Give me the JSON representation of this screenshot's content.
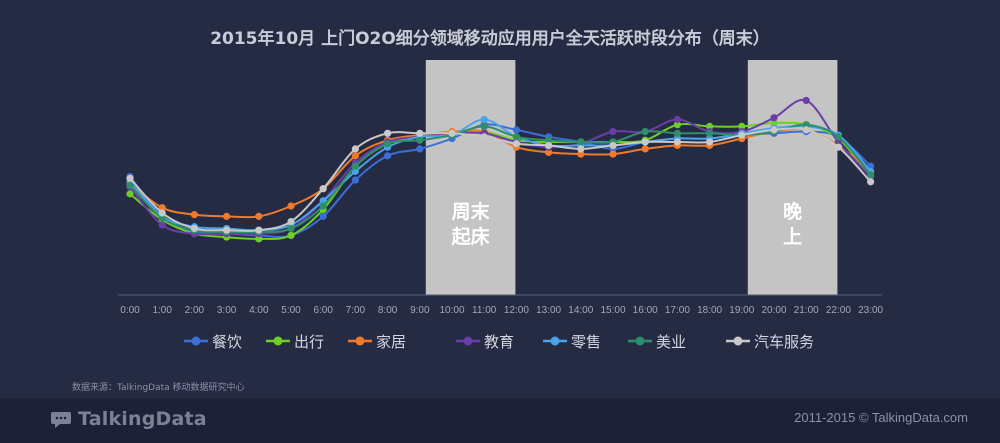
{
  "chart_data": {
    "type": "line",
    "title": "2015年10月  上门O2O细分领域移动应用用户全天活跃时段分布（周末）",
    "categories": [
      "0:00",
      "1:00",
      "2:00",
      "3:00",
      "4:00",
      "5:00",
      "6:00",
      "7:00",
      "8:00",
      "9:00",
      "10:00",
      "11:00",
      "12:00",
      "13:00",
      "14:00",
      "15:00",
      "16:00",
      "17:00",
      "18:00",
      "19:00",
      "20:00",
      "21:00",
      "22:00",
      "23:00"
    ],
    "ylim": [
      0,
      100
    ],
    "grid": false,
    "legend_position": "bottom",
    "series": [
      {
        "name": "餐饮",
        "color": "#3a6fd8",
        "values": [
          54,
          31,
          22,
          21,
          20,
          20,
          31,
          52,
          66,
          70,
          76,
          84,
          81,
          77,
          74,
          70,
          74,
          76,
          76,
          78,
          79,
          80,
          77,
          60
        ]
      },
      {
        "name": "出行",
        "color": "#6fcf24",
        "values": [
          44,
          29,
          21,
          19,
          18,
          20,
          35,
          60,
          73,
          77,
          79,
          80,
          75,
          74,
          74,
          74,
          75,
          84,
          83,
          83,
          85,
          84,
          76,
          54
        ]
      },
      {
        "name": "家居",
        "color": "#f07a2a",
        "values": [
          50,
          36,
          32,
          31,
          31,
          37,
          47,
          66,
          75,
          78,
          80,
          80,
          71,
          68,
          67,
          67,
          70,
          72,
          72,
          76,
          80,
          81,
          72,
          57
        ]
      },
      {
        "name": "教育",
        "color": "#6a3ea8",
        "values": [
          48,
          26,
          21,
          21,
          21,
          24,
          40,
          62,
          74,
          77,
          79,
          79,
          74,
          71,
          73,
          80,
          80,
          87,
          80,
          80,
          88,
          98,
          74,
          54
        ]
      },
      {
        "name": "零售",
        "color": "#4aa3e6",
        "values": [
          51,
          31,
          25,
          24,
          23,
          26,
          40,
          57,
          71,
          77,
          78,
          87,
          77,
          72,
          72,
          72,
          74,
          76,
          76,
          79,
          82,
          83,
          78,
          57
        ]
      },
      {
        "name": "美业",
        "color": "#2e8f6a",
        "values": [
          49,
          30,
          23,
          22,
          22,
          24,
          37,
          60,
          73,
          75,
          78,
          83,
          77,
          75,
          74,
          74,
          80,
          79,
          79,
          78,
          80,
          84,
          77,
          55
        ]
      },
      {
        "name": "汽车服务",
        "color": "#c8c8c8",
        "values": [
          53,
          33,
          24,
          23,
          23,
          28,
          47,
          70,
          79,
          79,
          79,
          77,
          73,
          72,
          70,
          72,
          74,
          74,
          74,
          78,
          81,
          81,
          71,
          51
        ]
      }
    ],
    "highlights": [
      {
        "label": "周末起床",
        "lines": [
          "周末",
          "起床"
        ],
        "from": "9:00",
        "to": "12:00"
      },
      {
        "label": "晚上",
        "lines": [
          "晚",
          "上"
        ],
        "from": "19:00",
        "to": "22:00"
      }
    ]
  },
  "footer": {
    "source": "数据来源：TalkingData 移动数据研究中心",
    "logo": "TalkingData",
    "copyright": "2011-2015 © TalkingData.com"
  }
}
